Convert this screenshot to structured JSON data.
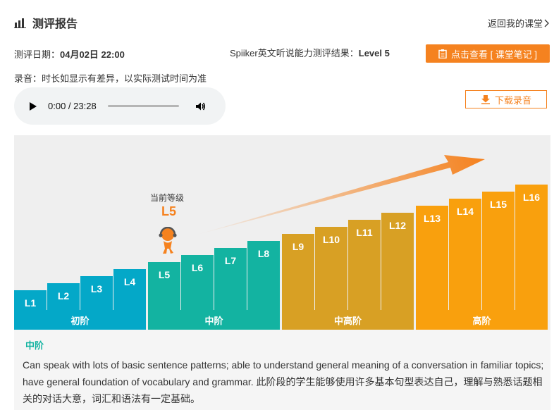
{
  "header": {
    "title": "测评报告",
    "back_link": "返回我的课堂"
  },
  "test_info": {
    "date_label": "测评日期：",
    "date_value": "04月02日 22:00",
    "result_label": "Spiiker英文听说能力测评结果：",
    "result_value": "Level 5",
    "notes_button": "点击查看 [ 课堂笔记 ]",
    "recording_note": "录音：时长如显示有差异，以实际测试时间为准",
    "download_button": "下载录音"
  },
  "audio": {
    "time": "0:00 / 23:28",
    "progress": 0
  },
  "chart_data": {
    "type": "bar",
    "title": "",
    "categories": [
      "L1",
      "L2",
      "L3",
      "L4",
      "L5",
      "L6",
      "L7",
      "L8",
      "L9",
      "L10",
      "L11",
      "L12",
      "L13",
      "L14",
      "L15",
      "L16"
    ],
    "values": [
      1,
      2,
      3,
      4,
      5,
      6,
      7,
      8,
      9,
      10,
      11,
      12,
      13,
      14,
      15,
      16
    ],
    "stages": [
      {
        "name": "初阶",
        "levels": [
          "L1",
          "L2",
          "L3",
          "L4"
        ]
      },
      {
        "name": "中阶",
        "levels": [
          "L5",
          "L6",
          "L7",
          "L8"
        ]
      },
      {
        "name": "中高阶",
        "levels": [
          "L9",
          "L10",
          "L11",
          "L12"
        ]
      },
      {
        "name": "高阶",
        "levels": [
          "L13",
          "L14",
          "L15",
          "L16"
        ]
      }
    ],
    "current_label": "当前等级",
    "current_level": "L5",
    "colors": [
      "#04a8c8",
      "#13b3a1",
      "#d8a024",
      "#f9a00d"
    ],
    "accent": "#f5821f"
  },
  "description": {
    "stage": "中阶",
    "text": "Can speak with lots of basic sentence patterns; able to understand general meaning of a conversation in familiar topics; have general foundation of vocabulary and grammar. 此阶段的学生能够使用许多基本句型表达自己，理解与熟悉话题相关的对话大意，词汇和语法有一定基础。"
  }
}
